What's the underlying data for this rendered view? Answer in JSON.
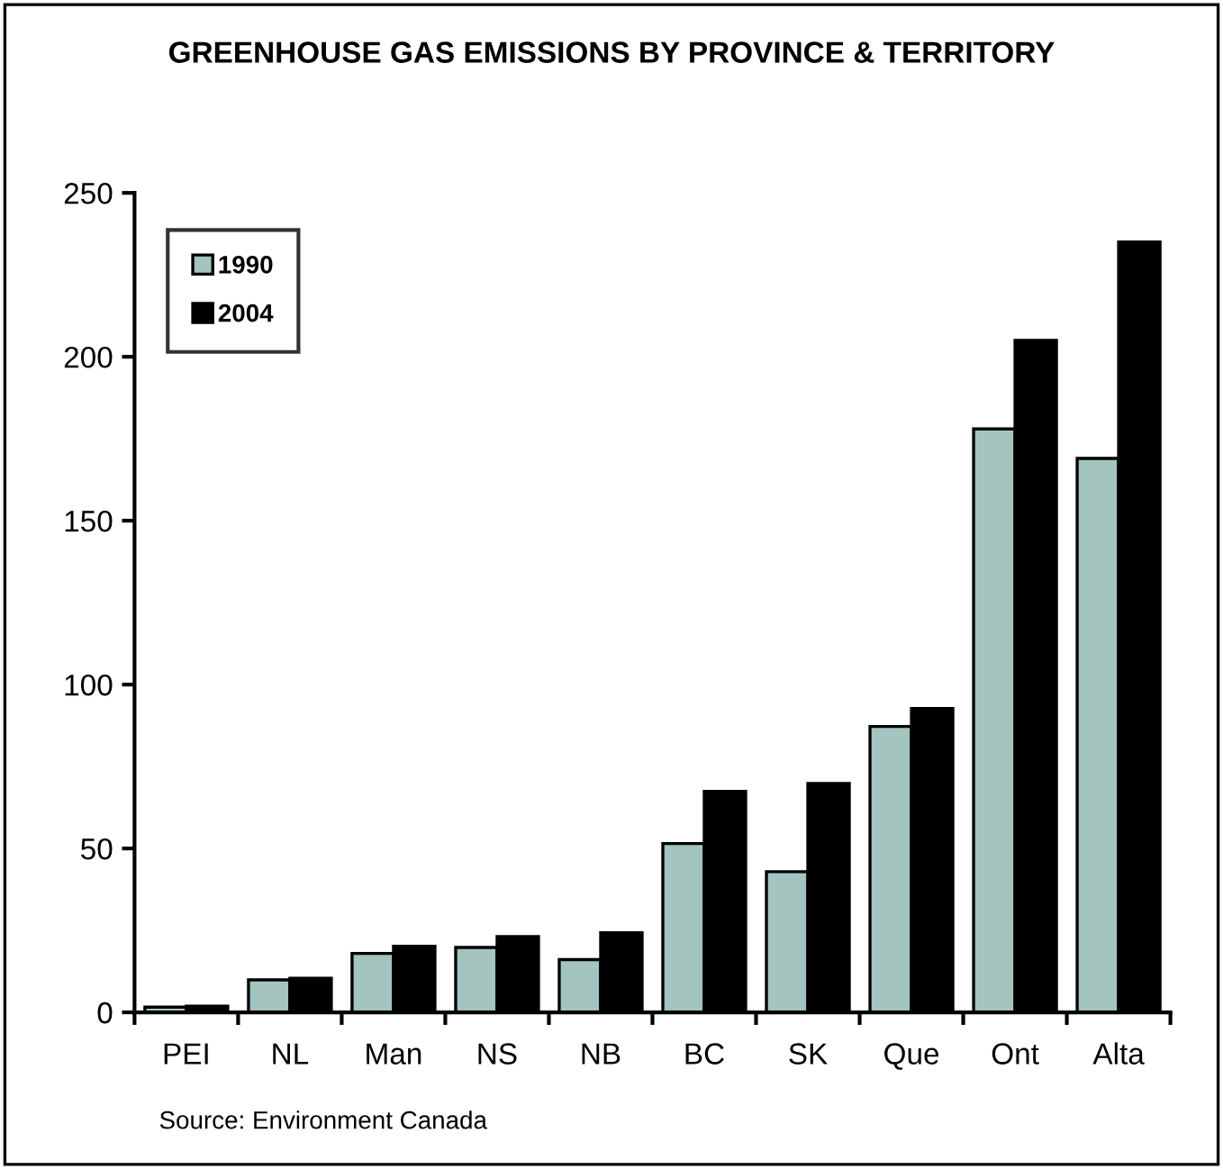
{
  "chart_data": {
    "type": "bar",
    "title": "GREENHOUSE GAS EMISSIONS BY PROVINCE & TERRITORY",
    "categories": [
      "PEI",
      "NL",
      "Man",
      "NS",
      "NB",
      "BC",
      "SK",
      "Que",
      "Ont",
      "Alta"
    ],
    "series": [
      {
        "name": "1990",
        "color": "#a3c4bf",
        "values": [
          1.6,
          9.9,
          18,
          19.8,
          16.1,
          51.5,
          42.9,
          87.2,
          178,
          169
        ]
      },
      {
        "name": "2004",
        "color": "#000000",
        "values": [
          1.9,
          10.4,
          20.2,
          23.1,
          24.3,
          67.4,
          69.8,
          92.7,
          205,
          235
        ]
      }
    ],
    "ylim": [
      0,
      250
    ],
    "yticks": [
      0,
      50,
      100,
      150,
      200,
      250
    ],
    "grid": false,
    "legend": "top left",
    "annotations": [
      "Source: Environment Canada"
    ]
  }
}
